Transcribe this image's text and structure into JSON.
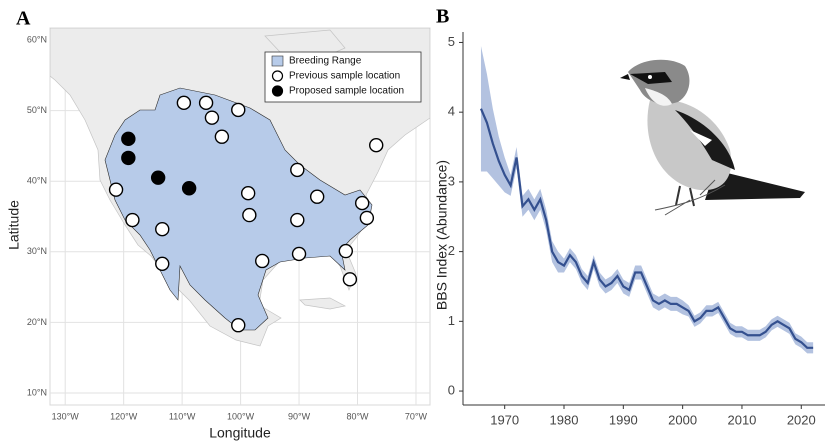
{
  "chart_data": [
    {
      "type": "scatter",
      "panel_label": "A",
      "x_label": "Longitude",
      "y_label": "Latitude",
      "xlim": [
        -132.6,
        -67.6
      ],
      "ylim": [
        8.3,
        61.7
      ],
      "xticks": [
        {
          "value": -130,
          "label": "130°W"
        },
        {
          "value": -120,
          "label": "120°W"
        },
        {
          "value": -110,
          "label": "110°W"
        },
        {
          "value": -100,
          "label": "100°W"
        },
        {
          "value": -90,
          "label": "90°W"
        },
        {
          "value": -80,
          "label": "80°W"
        },
        {
          "value": -70,
          "label": "70°W"
        }
      ],
      "yticks": [
        {
          "value": 10,
          "label": "10°N"
        },
        {
          "value": 20,
          "label": "20°N"
        },
        {
          "value": 30,
          "label": "30°N"
        },
        {
          "value": 40,
          "label": "40°N"
        },
        {
          "value": 50,
          "label": "50°N"
        },
        {
          "value": 60,
          "label": "60°N"
        }
      ],
      "grid": true,
      "legend": "top-right",
      "area_legend": "Breeding Range",
      "area_color": "#b7cbe9",
      "series": [
        {
          "name": "Previous sample location",
          "color": "#ffffff",
          "x": [
            -109.7,
            -105.9,
            -104.9,
            -100.4,
            -103.2,
            -76.8,
            -90.3,
            -121.3,
            -98.7,
            -86.9,
            -79.2,
            -118.5,
            -98.5,
            -90.3,
            -78.4,
            -113.4,
            -96.3,
            -90.0,
            -82.0,
            -81.3,
            -113.4,
            -100.4
          ],
          "values": [
            51.1,
            51.1,
            49.0,
            50.1,
            46.3,
            45.1,
            41.6,
            38.8,
            38.3,
            37.8,
            36.9,
            34.5,
            35.2,
            34.5,
            34.8,
            33.2,
            28.7,
            29.7,
            30.1,
            26.1,
            28.3,
            19.6
          ]
        },
        {
          "name": "Proposed sample location",
          "color": "#000000",
          "x": [
            -119.2,
            -119.2,
            -114.1,
            -108.8
          ],
          "values": [
            46.0,
            43.3,
            40.5,
            39.0
          ]
        }
      ]
    },
    {
      "type": "line",
      "panel_label": "B",
      "y_label": "BBS Index (Abundance)",
      "xlim": [
        1965.5,
        2024
      ],
      "ylim": [
        -0.2,
        5.15
      ],
      "xticks": [
        1970,
        1980,
        1990,
        2000,
        2010,
        2020
      ],
      "yticks": [
        0,
        1,
        2,
        3,
        4,
        5
      ],
      "color": "#34508f",
      "band_color": "#b3c2e0",
      "x": [
        1966,
        1967,
        1968,
        1969,
        1970,
        1971,
        1972,
        1973,
        1974,
        1975,
        1976,
        1977,
        1978,
        1979,
        1980,
        1981,
        1982,
        1983,
        1984,
        1985,
        1986,
        1987,
        1988,
        1989,
        1990,
        1991,
        1992,
        1993,
        1994,
        1995,
        1996,
        1997,
        1998,
        1999,
        2000,
        2001,
        2002,
        2003,
        2004,
        2005,
        2006,
        2007,
        2008,
        2009,
        2010,
        2011,
        2012,
        2013,
        2014,
        2015,
        2016,
        2017,
        2018,
        2019,
        2020,
        2021,
        2022
      ],
      "values": [
        4.05,
        3.85,
        3.55,
        3.3,
        3.1,
        2.95,
        3.35,
        2.65,
        2.75,
        2.6,
        2.75,
        2.45,
        2.0,
        1.85,
        1.8,
        1.95,
        1.85,
        1.65,
        1.55,
        1.85,
        1.6,
        1.5,
        1.55,
        1.65,
        1.5,
        1.45,
        1.7,
        1.7,
        1.5,
        1.3,
        1.25,
        1.3,
        1.25,
        1.25,
        1.2,
        1.15,
        1.0,
        1.05,
        1.15,
        1.15,
        1.2,
        1.05,
        0.9,
        0.85,
        0.85,
        0.8,
        0.8,
        0.8,
        0.85,
        0.95,
        1.0,
        0.95,
        0.9,
        0.75,
        0.7,
        0.62,
        0.62
      ],
      "ci_upper": [
        4.95,
        4.55,
        4.05,
        3.65,
        3.35,
        3.1,
        3.5,
        2.8,
        2.9,
        2.75,
        2.9,
        2.6,
        2.15,
        2.0,
        1.9,
        2.05,
        1.95,
        1.75,
        1.65,
        1.95,
        1.7,
        1.6,
        1.65,
        1.75,
        1.6,
        1.55,
        1.8,
        1.8,
        1.6,
        1.4,
        1.35,
        1.4,
        1.35,
        1.35,
        1.3,
        1.23,
        1.08,
        1.13,
        1.23,
        1.23,
        1.28,
        1.13,
        0.98,
        0.93,
        0.93,
        0.88,
        0.88,
        0.88,
        0.93,
        1.03,
        1.08,
        1.03,
        0.98,
        0.83,
        0.78,
        0.7,
        0.7
      ],
      "ci_lower": [
        3.15,
        3.15,
        3.05,
        2.95,
        2.85,
        2.8,
        3.2,
        2.5,
        2.6,
        2.45,
        2.6,
        2.3,
        1.85,
        1.7,
        1.7,
        1.85,
        1.75,
        1.55,
        1.45,
        1.75,
        1.5,
        1.4,
        1.45,
        1.55,
        1.4,
        1.35,
        1.6,
        1.6,
        1.4,
        1.2,
        1.15,
        1.2,
        1.15,
        1.15,
        1.1,
        1.07,
        0.92,
        0.97,
        1.07,
        1.07,
        1.12,
        0.97,
        0.82,
        0.77,
        0.77,
        0.72,
        0.72,
        0.72,
        0.77,
        0.87,
        0.92,
        0.87,
        0.82,
        0.67,
        0.62,
        0.54,
        0.54
      ]
    }
  ]
}
